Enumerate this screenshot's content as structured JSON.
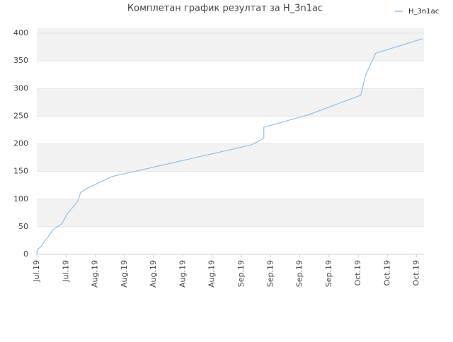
{
  "chart_data": {
    "type": "line",
    "title": "Комплетан график резултат за H_3n1ac",
    "series": [
      {
        "name": "H_3n1ac",
        "color": "#8cc0ec",
        "x": [
          0,
          0.02,
          0.15,
          0.24,
          0.39,
          0.56,
          0.85,
          1.04,
          1.4,
          1.5,
          1.77,
          2.59,
          7.34,
          7.7,
          7.77,
          7.77,
          9.27,
          11.09,
          11.24,
          11.6,
          13.2
        ],
        "values": [
          0,
          9,
          14,
          22,
          32,
          45,
          55,
          73,
          96,
          112,
          121,
          141,
          198,
          208,
          210,
          230,
          252,
          288,
          323,
          364,
          390
        ]
      }
    ],
    "xlim": [
      0,
      13.25
    ],
    "xticks": [
      {
        "value": 0,
        "label": "Jul.19"
      },
      {
        "value": 1,
        "label": "Jul.19"
      },
      {
        "value": 2,
        "label": "Aug.19"
      },
      {
        "value": 3,
        "label": "Aug.19"
      },
      {
        "value": 4,
        "label": "Aug.19"
      },
      {
        "value": 5,
        "label": "Aug.19"
      },
      {
        "value": 6,
        "label": "Aug.19"
      },
      {
        "value": 7,
        "label": "Sep.19"
      },
      {
        "value": 8,
        "label": "Sep.19"
      },
      {
        "value": 9,
        "label": "Sep.19"
      },
      {
        "value": 10,
        "label": "Sep.19"
      },
      {
        "value": 11,
        "label": "Oct.19"
      },
      {
        "value": 12,
        "label": "Oct.19"
      },
      {
        "value": 13,
        "label": "Oct.19"
      }
    ],
    "ylim": [
      0,
      409
    ],
    "yticks": [
      0,
      50,
      100,
      150,
      200,
      250,
      300,
      350,
      400
    ],
    "grid": true,
    "legend": "top-right"
  }
}
